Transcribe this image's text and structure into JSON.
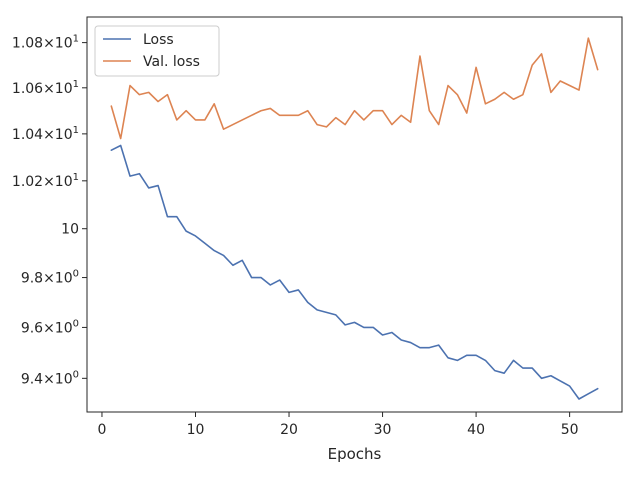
{
  "chart_data": {
    "type": "line",
    "title": "",
    "xlabel": "Epochs",
    "ylabel": "",
    "y_scale": "log",
    "grid": false,
    "legend_position": "top-left",
    "xlim": [
      -1.6,
      55.6
    ],
    "ylim": [
      9.27,
      10.915
    ],
    "x_ticks": [
      {
        "value": 0,
        "label": "0"
      },
      {
        "value": 10,
        "label": "10"
      },
      {
        "value": 20,
        "label": "20"
      },
      {
        "value": 30,
        "label": "30"
      },
      {
        "value": 40,
        "label": "40"
      },
      {
        "value": 50,
        "label": "50"
      }
    ],
    "y_ticks": [
      {
        "value": 9.4,
        "mantissa": "9.4",
        "exp": "0"
      },
      {
        "value": 9.6,
        "mantissa": "9.6",
        "exp": "0"
      },
      {
        "value": 9.8,
        "mantissa": "9.8",
        "exp": "0"
      },
      {
        "value": 10.0,
        "mantissa": "10",
        "exp": "1",
        "plain": true
      },
      {
        "value": 10.2,
        "mantissa": "1.02",
        "exp": "1"
      },
      {
        "value": 10.4,
        "mantissa": "1.04",
        "exp": "1"
      },
      {
        "value": 10.6,
        "mantissa": "1.06",
        "exp": "1"
      },
      {
        "value": 10.8,
        "mantissa": "1.08",
        "exp": "1"
      }
    ],
    "x": [
      1,
      2,
      3,
      4,
      5,
      6,
      7,
      8,
      9,
      10,
      11,
      12,
      13,
      14,
      15,
      16,
      17,
      18,
      19,
      20,
      21,
      22,
      23,
      24,
      25,
      26,
      27,
      28,
      29,
      30,
      31,
      32,
      33,
      34,
      35,
      36,
      37,
      38,
      39,
      40,
      41,
      42,
      43,
      44,
      45,
      46,
      47,
      48,
      49,
      50,
      51,
      52,
      53
    ],
    "series": [
      {
        "name": "Loss",
        "color": "#4c72b0",
        "values": [
          10.33,
          10.35,
          10.22,
          10.23,
          10.17,
          10.18,
          10.05,
          10.05,
          9.99,
          9.97,
          9.94,
          9.91,
          9.89,
          9.85,
          9.87,
          9.8,
          9.8,
          9.77,
          9.79,
          9.74,
          9.75,
          9.7,
          9.67,
          9.66,
          9.65,
          9.61,
          9.62,
          9.6,
          9.6,
          9.57,
          9.58,
          9.55,
          9.54,
          9.52,
          9.52,
          9.53,
          9.48,
          9.47,
          9.49,
          9.49,
          9.47,
          9.43,
          9.42,
          9.47,
          9.44,
          9.44,
          9.4,
          9.41,
          9.39,
          9.37,
          9.32,
          9.34,
          9.36
        ]
      },
      {
        "name": "Val. loss",
        "color": "#dd8452",
        "values": [
          10.52,
          10.38,
          10.61,
          10.57,
          10.58,
          10.54,
          10.57,
          10.46,
          10.5,
          10.46,
          10.46,
          10.53,
          10.42,
          10.44,
          10.46,
          10.48,
          10.5,
          10.51,
          10.48,
          10.48,
          10.48,
          10.5,
          10.44,
          10.43,
          10.47,
          10.44,
          10.5,
          10.46,
          10.5,
          10.5,
          10.44,
          10.48,
          10.45,
          10.74,
          10.5,
          10.44,
          10.61,
          10.57,
          10.49,
          10.69,
          10.53,
          10.55,
          10.58,
          10.55,
          10.57,
          10.7,
          10.75,
          10.58,
          10.63,
          10.61,
          10.59,
          10.82,
          10.68
        ]
      }
    ]
  }
}
